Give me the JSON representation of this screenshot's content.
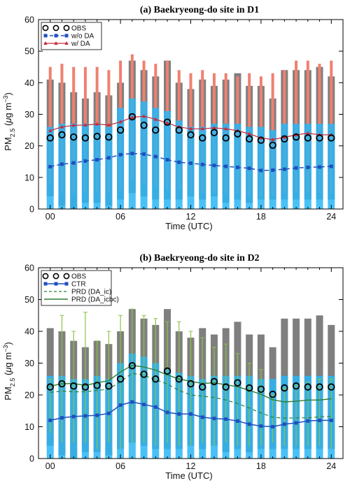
{
  "chart_data": [
    {
      "type": "bar",
      "title": "(a) Baekryeong-do site in D1",
      "xlabel": "Time (UTC)",
      "ylabel": {
        "base": "PM",
        "sub": "2.5",
        "unit_open": " (",
        "mu": "μ",
        "unit_mid": "g m",
        "sup": "−3",
        "unit_close": ")"
      },
      "xlim": [
        -1,
        25
      ],
      "ylim": [
        0,
        60
      ],
      "xticks": [
        0,
        6,
        12,
        18,
        24
      ],
      "xtick_labels": [
        "00",
        "06",
        "12",
        "18",
        "24"
      ],
      "yticks": [
        0,
        10,
        20,
        30,
        40,
        50,
        60
      ],
      "x": [
        0,
        1,
        2,
        3,
        4,
        5,
        6,
        7,
        8,
        9,
        10,
        11,
        12,
        13,
        14,
        15,
        16,
        17,
        18,
        19,
        20,
        21,
        22,
        23,
        24
      ],
      "legend": {
        "position": "top-left",
        "entries": [
          "OBS",
          "w/o DA",
          "w/   DA"
        ]
      },
      "colors": {
        "obs_range": "#7f7f7f",
        "noda_range": "#29b6f6",
        "da_range": "#f08070",
        "noda_line": "#1f4fbf",
        "da_line": "#c8283a"
      },
      "obs_range": [
        [
          4,
          41
        ],
        [
          1,
          40
        ],
        [
          0,
          37
        ],
        [
          2,
          35
        ],
        [
          2,
          37
        ],
        [
          1,
          36
        ],
        [
          3,
          40
        ],
        [
          5,
          47
        ],
        [
          4,
          44
        ],
        [
          3,
          42
        ],
        [
          3,
          47
        ],
        [
          3,
          40
        ],
        [
          4,
          38
        ],
        [
          3,
          41
        ],
        [
          4,
          39
        ],
        [
          2,
          41
        ],
        [
          3,
          43
        ],
        [
          2,
          39
        ],
        [
          3,
          39
        ],
        [
          3,
          35
        ],
        [
          3,
          44
        ],
        [
          3,
          44
        ],
        [
          3,
          44
        ],
        [
          3,
          45
        ],
        [
          3,
          42
        ]
      ],
      "noda_range": [
        [
          0,
          26
        ],
        [
          0,
          27
        ],
        [
          0,
          27
        ],
        [
          0,
          27
        ],
        [
          0,
          27
        ],
        [
          0,
          26
        ],
        [
          0,
          32
        ],
        [
          0,
          35
        ],
        [
          0,
          34
        ],
        [
          0,
          32
        ],
        [
          0,
          31
        ],
        [
          0,
          28
        ],
        [
          0,
          26
        ],
        [
          0,
          26
        ],
        [
          0,
          27
        ],
        [
          0,
          27
        ],
        [
          0,
          27
        ],
        [
          0,
          26
        ],
        [
          0,
          26
        ],
        [
          0,
          25
        ],
        [
          0,
          27
        ],
        [
          0,
          27
        ],
        [
          0,
          27
        ],
        [
          0,
          27
        ],
        [
          0,
          27
        ]
      ],
      "da_range": [
        [
          8,
          45
        ],
        [
          5,
          46
        ],
        [
          5,
          45
        ],
        [
          5,
          45
        ],
        [
          5,
          45
        ],
        [
          5,
          44
        ],
        [
          6,
          47
        ],
        [
          9,
          49
        ],
        [
          8,
          47
        ],
        [
          7,
          46
        ],
        [
          6,
          47
        ],
        [
          6,
          44
        ],
        [
          5,
          43
        ],
        [
          5,
          44
        ],
        [
          5,
          43
        ],
        [
          5,
          43
        ],
        [
          5,
          42
        ],
        [
          4,
          43
        ],
        [
          4,
          42
        ],
        [
          4,
          43
        ],
        [
          5,
          44
        ],
        [
          5,
          47
        ],
        [
          5,
          47
        ],
        [
          5,
          46
        ],
        [
          5,
          47
        ]
      ],
      "series": [
        {
          "name": "OBS",
          "style": "circle",
          "values": [
            22.5,
            23.5,
            22.8,
            22.5,
            23,
            22.8,
            25,
            29.2,
            26.5,
            25,
            27.5,
            25,
            23.5,
            22.5,
            24.2,
            22.5,
            23.8,
            22.2,
            21.8,
            20.2,
            22.2,
            22.8,
            22.5,
            22.5,
            22.5
          ]
        },
        {
          "name": "w/o DA",
          "style": "dashed-square",
          "values": [
            13.4,
            14.2,
            14.6,
            15.2,
            15.6,
            16.2,
            17.2,
            17.6,
            17.4,
            16.6,
            15.6,
            14.8,
            14.5,
            14.1,
            13.8,
            13.5,
            13.2,
            12.9,
            12.2,
            12.3,
            12.6,
            13,
            13.2,
            13.3,
            13.5
          ]
        },
        {
          "name": "w/   DA",
          "style": "solid-triangle",
          "values": [
            24.8,
            26,
            26.5,
            26.6,
            26.9,
            26.6,
            27.6,
            29,
            29.4,
            28.4,
            27.2,
            26,
            25.4,
            25.4,
            25.7,
            25.4,
            24.8,
            23.8,
            22.5,
            22,
            22.7,
            23.5,
            24,
            23.5,
            23.5
          ]
        }
      ]
    },
    {
      "type": "bar",
      "title": "(b) Baekryeong-do site in D2",
      "xlabel": "Time (UTC)",
      "ylabel": {
        "base": "PM",
        "sub": "2.5",
        "unit_open": " (",
        "mu": "μ",
        "unit_mid": "g m",
        "sup": "−3",
        "unit_close": ")"
      },
      "xlim": [
        -1,
        25
      ],
      "ylim": [
        0,
        60
      ],
      "xticks": [
        0,
        6,
        12,
        18,
        24
      ],
      "xtick_labels": [
        "00",
        "06",
        "12",
        "18",
        "24"
      ],
      "yticks": [
        0,
        10,
        20,
        30,
        40,
        50,
        60
      ],
      "x": [
        0,
        1,
        2,
        3,
        4,
        5,
        6,
        7,
        8,
        9,
        10,
        11,
        12,
        13,
        14,
        15,
        16,
        17,
        18,
        19,
        20,
        21,
        22,
        23,
        24
      ],
      "legend": {
        "position": "top-left",
        "entries": [
          "OBS",
          "CTR",
          "PRD (DA_ic)",
          "PRD (DA_icbc)"
        ]
      },
      "colors": {
        "obs_range": "#7f7f7f",
        "ctr_range": "#29b6f6",
        "prd_range": "#8bc34a",
        "ctr_line": "#1f4fbf",
        "prd_ic_line": "#2e7d32",
        "prd_icbc_line": "#2e7d32"
      },
      "obs_range": [
        [
          4,
          41
        ],
        [
          1,
          40
        ],
        [
          0,
          37
        ],
        [
          2,
          35
        ],
        [
          2,
          37
        ],
        [
          1,
          36
        ],
        [
          3,
          40
        ],
        [
          5,
          47
        ],
        [
          4,
          44
        ],
        [
          3,
          42
        ],
        [
          3,
          47
        ],
        [
          3,
          40
        ],
        [
          4,
          38
        ],
        [
          3,
          41
        ],
        [
          4,
          39
        ],
        [
          2,
          41
        ],
        [
          3,
          43
        ],
        [
          2,
          39
        ],
        [
          3,
          39
        ],
        [
          3,
          35
        ],
        [
          3,
          44
        ],
        [
          3,
          44
        ],
        [
          3,
          44
        ],
        [
          3,
          45
        ],
        [
          3,
          42
        ]
      ],
      "ctr_range": [
        [
          0,
          26
        ],
        [
          0,
          26
        ],
        [
          0,
          25
        ],
        [
          0,
          25
        ],
        [
          0,
          26
        ],
        [
          0,
          25
        ],
        [
          0,
          30
        ],
        [
          0,
          33
        ],
        [
          0,
          32
        ],
        [
          0,
          30
        ],
        [
          0,
          28
        ],
        [
          0,
          27
        ],
        [
          0,
          26
        ],
        [
          0,
          25
        ],
        [
          0,
          26
        ],
        [
          0,
          26
        ],
        [
          0,
          26
        ],
        [
          0,
          26
        ],
        [
          0,
          25
        ],
        [
          0,
          25
        ],
        [
          0,
          26
        ],
        [
          0,
          26
        ],
        [
          0,
          26
        ],
        [
          0,
          26
        ],
        [
          0,
          26
        ]
      ],
      "prd_range": [
        [
          8,
          25
        ],
        [
          5,
          45
        ],
        [
          5,
          40
        ],
        [
          5,
          46
        ],
        [
          3,
          37
        ],
        [
          5,
          40
        ],
        [
          3,
          45
        ],
        [
          5,
          47
        ],
        [
          5,
          45
        ],
        [
          4,
          44
        ],
        [
          5,
          43
        ],
        [
          4,
          43
        ],
        [
          4,
          40
        ],
        [
          5,
          38
        ],
        [
          4,
          35
        ],
        [
          5,
          36
        ],
        [
          4,
          33
        ],
        [
          4,
          30
        ],
        [
          4,
          28
        ],
        [
          5,
          20
        ],
        [
          4,
          22
        ],
        [
          4,
          23
        ],
        [
          4,
          24
        ],
        [
          4,
          25
        ],
        [
          3,
          25
        ]
      ],
      "series": [
        {
          "name": "OBS",
          "style": "circle",
          "values": [
            22.5,
            23.5,
            22.8,
            22.5,
            23,
            22.8,
            25,
            29.2,
            26.5,
            25,
            27.5,
            25,
            23.5,
            22.5,
            24.2,
            22.5,
            23.8,
            22.2,
            21.8,
            20.2,
            22.2,
            22.8,
            22.5,
            22.5,
            22.5
          ]
        },
        {
          "name": "CTR",
          "style": "solid-square",
          "values": [
            12,
            12.8,
            13.2,
            13.4,
            13.6,
            14.2,
            16.8,
            17.8,
            17,
            16.2,
            14.5,
            14,
            14,
            13,
            12.6,
            12.4,
            11.8,
            10.8,
            10.2,
            10,
            10.8,
            11.2,
            11.8,
            12,
            12
          ]
        },
        {
          "name": "PRD (DA_ic)",
          "style": "dashed",
          "values": [
            20.8,
            21.2,
            21,
            21,
            21.4,
            21.8,
            24.2,
            26.8,
            26.2,
            24.8,
            23.4,
            21.4,
            20,
            19.6,
            19.2,
            18.4,
            17.3,
            15.9,
            14.3,
            13,
            12.7,
            12.8,
            12.8,
            13.1,
            13.3
          ]
        },
        {
          "name": "PRD (DA_icbc)",
          "style": "solid",
          "values": [
            22.8,
            23.5,
            23.6,
            23,
            23.8,
            24.5,
            27.2,
            29.3,
            28.8,
            27.8,
            26.3,
            25,
            24.3,
            23.6,
            23.8,
            23.2,
            22.6,
            21.4,
            20.2,
            18.5,
            17.8,
            18,
            18.4,
            18.4,
            18.8
          ]
        }
      ]
    }
  ]
}
